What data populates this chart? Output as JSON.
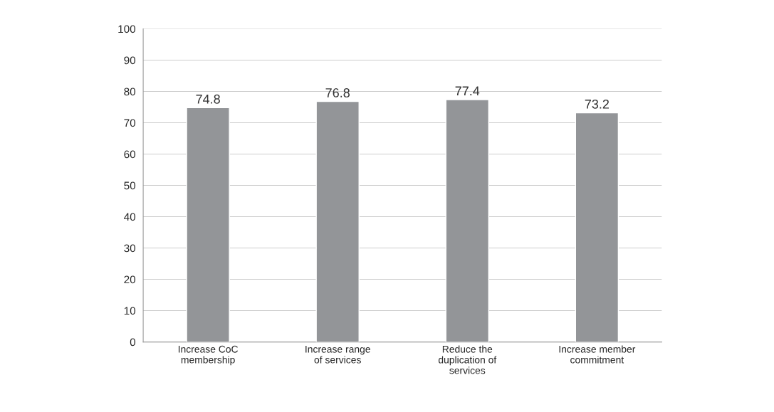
{
  "chart_data": {
    "type": "bar",
    "categories": [
      "Increase CoC membership",
      "Increase range of services",
      "Reduce the duplication of services",
      "Increase member commitment"
    ],
    "values": [
      74.8,
      76.8,
      77.4,
      73.2
    ],
    "color": "#939598",
    "ylim": [
      0,
      100
    ],
    "yticks": [
      0,
      10,
      20,
      30,
      40,
      50,
      60,
      70,
      80,
      90,
      100
    ],
    "grid": "y",
    "data_labels": true
  }
}
